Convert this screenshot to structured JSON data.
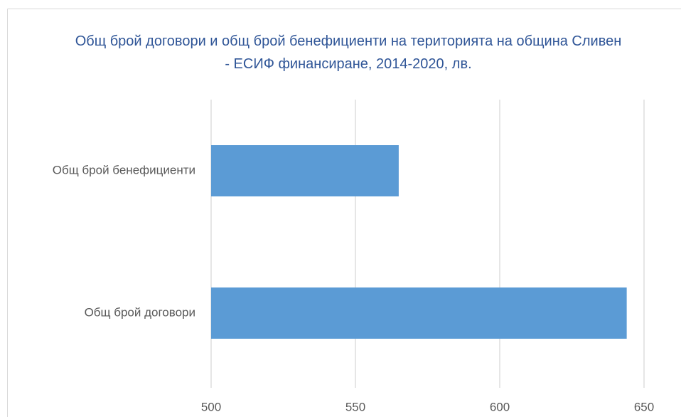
{
  "chart_data": {
    "type": "bar",
    "orientation": "horizontal",
    "title": "Общ брой договори и общ брой бенефициенти  на територията на община Сливен - ЕСИФ финансиране, 2014-2020, лв.",
    "categories": [
      "Общ брой бенефициенти",
      "Общ брой договори"
    ],
    "values": [
      565,
      644
    ],
    "color": "#5b9bd5",
    "xlim": [
      500,
      650
    ],
    "xticks": [
      500,
      550,
      600,
      650
    ],
    "grid": true
  }
}
